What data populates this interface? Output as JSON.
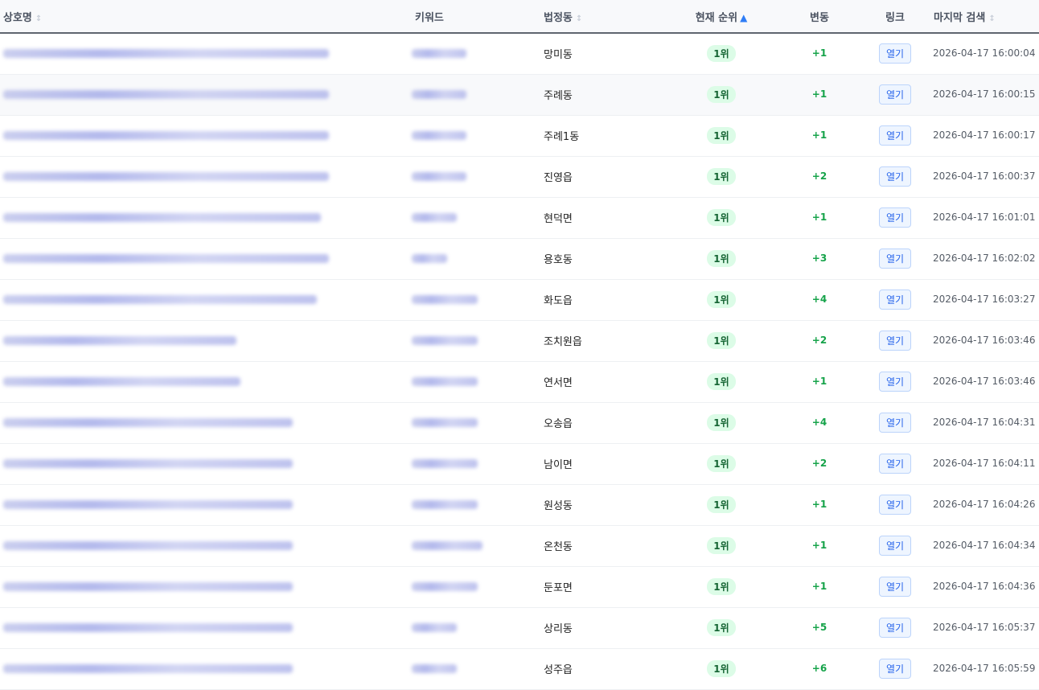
{
  "headers": {
    "name": "상호명",
    "keyword": "키워드",
    "dong": "법정동",
    "rank": "현재 순위",
    "change": "변동",
    "link": "링크",
    "last": "마지막 검색"
  },
  "sort": {
    "column": "rank",
    "direction": "ascending",
    "indicator": "▲",
    "neutral": "↕"
  },
  "colors": {
    "accent": "#2f7df6",
    "badge_bg": "#dcfce7",
    "change": "#16a34a"
  },
  "name_blurred": true,
  "rows": [
    {
      "dong": "망미동",
      "rank": "1위",
      "change": "+1",
      "link": "열기",
      "time": "2026-04-17 16:00:04"
    },
    {
      "dong": "주례동",
      "rank": "1위",
      "change": "+1",
      "link": "열기",
      "time": "2026-04-17 16:00:15"
    },
    {
      "dong": "주례1동",
      "rank": "1위",
      "change": "+1",
      "link": "열기",
      "time": "2026-04-17 16:00:17"
    },
    {
      "dong": "진영읍",
      "rank": "1위",
      "change": "+2",
      "link": "열기",
      "time": "2026-04-17 16:00:37"
    },
    {
      "dong": "현덕면",
      "rank": "1위",
      "change": "+1",
      "link": "열기",
      "time": "2026-04-17 16:01:01"
    },
    {
      "dong": "용호동",
      "rank": "1위",
      "change": "+3",
      "link": "열기",
      "time": "2026-04-17 16:02:02"
    },
    {
      "dong": "화도읍",
      "rank": "1위",
      "change": "+4",
      "link": "열기",
      "time": "2026-04-17 16:03:27"
    },
    {
      "dong": "조치원읍",
      "rank": "1위",
      "change": "+2",
      "link": "열기",
      "time": "2026-04-17 16:03:46"
    },
    {
      "dong": "연서면",
      "rank": "1위",
      "change": "+1",
      "link": "열기",
      "time": "2026-04-17 16:03:46"
    },
    {
      "dong": "오송읍",
      "rank": "1위",
      "change": "+4",
      "link": "열기",
      "time": "2026-04-17 16:04:31"
    },
    {
      "dong": "남이면",
      "rank": "1위",
      "change": "+2",
      "link": "열기",
      "time": "2026-04-17 16:04:11"
    },
    {
      "dong": "원성동",
      "rank": "1위",
      "change": "+1",
      "link": "열기",
      "time": "2026-04-17 16:04:26"
    },
    {
      "dong": "온천동",
      "rank": "1위",
      "change": "+1",
      "link": "열기",
      "time": "2026-04-17 16:04:34"
    },
    {
      "dong": "둔포면",
      "rank": "1위",
      "change": "+1",
      "link": "열기",
      "time": "2026-04-17 16:04:36"
    },
    {
      "dong": "상리동",
      "rank": "1위",
      "change": "+5",
      "link": "열기",
      "time": "2026-04-17 16:05:37"
    },
    {
      "dong": "성주읍",
      "rank": "1위",
      "change": "+6",
      "link": "열기",
      "time": "2026-04-17 16:05:59"
    }
  ]
}
